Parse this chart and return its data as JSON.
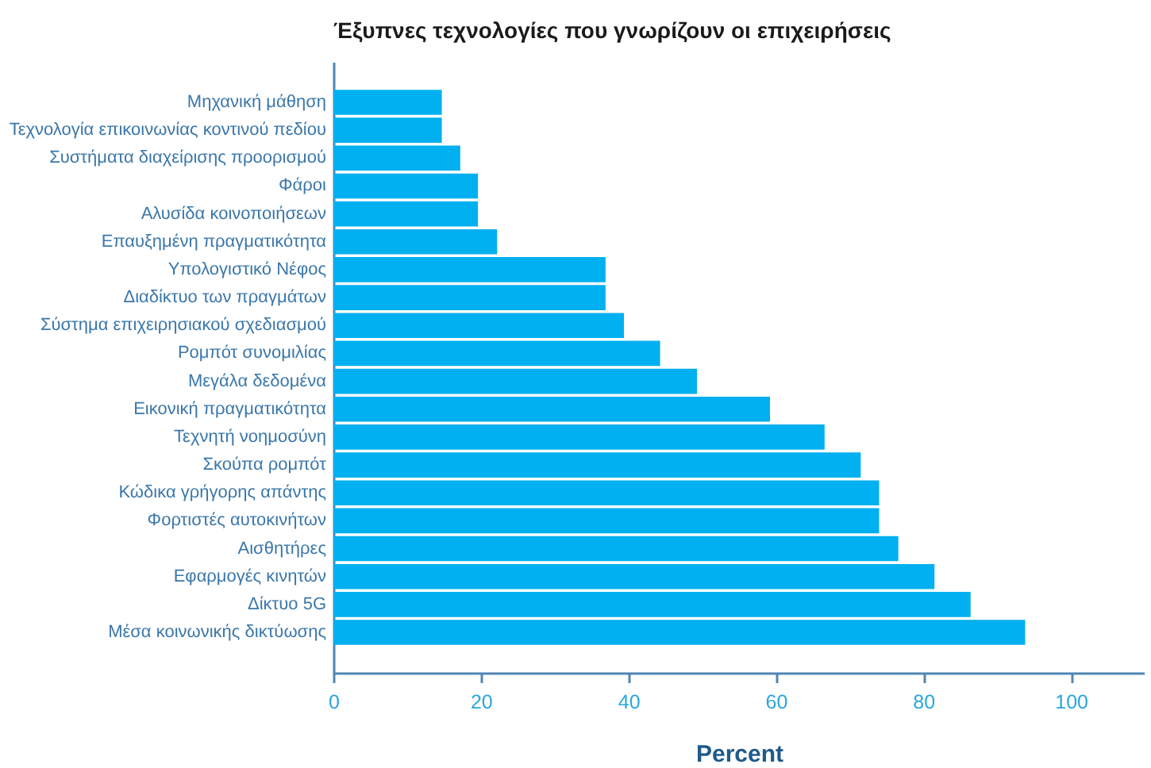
{
  "chart_data": {
    "type": "bar",
    "orientation": "horizontal",
    "title": "Έξυπνες τεχνολογίες που γνωρίζουν οι επιχειρήσεις",
    "xlabel": "Percent",
    "categories": [
      "Μηχανική μάθηση",
      "Τεχνολογία επικοινωνίας κοντινού πεδίου",
      "Συστήματα διαχείρισης προορισμού",
      "Φάροι",
      "Αλυσίδα κοινοποιήσεων",
      "Επαυξημένη πραγματικότητα",
      "Υπολογιστικό Νέφος",
      "Διαδίκτυο των πραγμάτων",
      "Σύστημα επιχειρησιακού σχεδιασμού",
      "Ρομπότ συνομιλίας",
      "Μεγάλα δεδομένα",
      "Εικονική πραγματικότητα",
      "Τεχνητή νοημοσύνη",
      "Σκούπα ρομπότ",
      "Κώδικα γρήγορης απάντης",
      "Φορτιστές αυτοκινήτων",
      "Αισθητήρες",
      "Εφαρμογές κινητών",
      "Δίκτυο 5G",
      "Μέσα κοινωνικής δικτύωσης"
    ],
    "values": [
      14.7,
      14.7,
      17.2,
      19.6,
      19.6,
      22.2,
      36.9,
      36.9,
      39.4,
      44.3,
      49.3,
      59.2,
      66.6,
      71.5,
      74.0,
      74.0,
      76.6,
      81.5,
      86.4,
      93.8
    ],
    "color": "#00b0f0",
    "xlim": [
      0,
      110
    ],
    "xticks": [
      0,
      20,
      40,
      60,
      80,
      100
    ],
    "grid": false
  }
}
